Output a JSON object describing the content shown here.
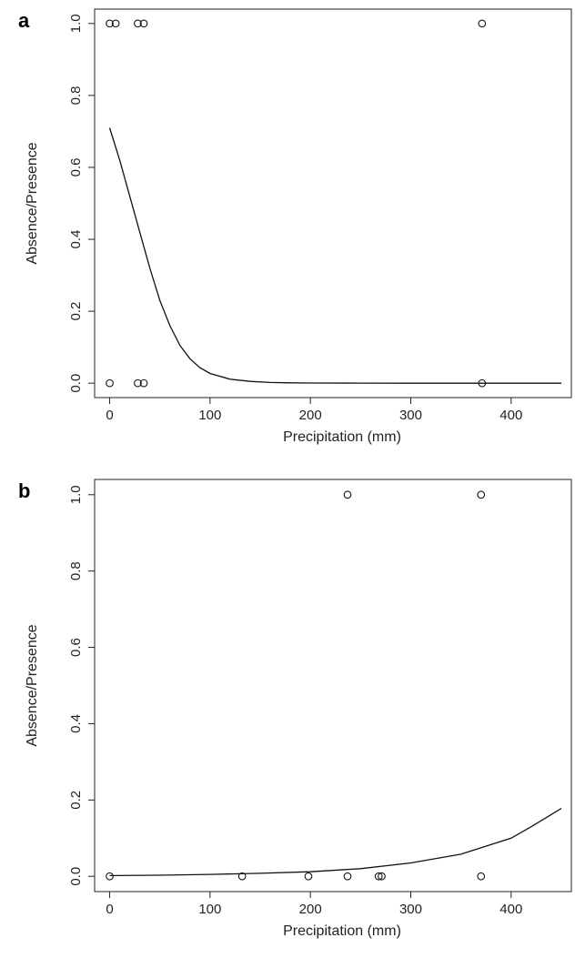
{
  "chart_data": [
    {
      "panel_label": "a",
      "type": "scatter",
      "xlabel": "Precipitation (mm)",
      "ylabel": "Absence/Presence",
      "xlim": [
        -15,
        460
      ],
      "ylim": [
        -0.04,
        1.04
      ],
      "x_ticks": [
        0,
        100,
        200,
        300,
        400
      ],
      "y_ticks": [
        0.0,
        0.2,
        0.4,
        0.6,
        0.8,
        1.0
      ],
      "y_tick_labels": [
        "0.0",
        "0.2",
        "0.4",
        "0.6",
        "0.8",
        "1.0"
      ],
      "grid": false,
      "points": [
        {
          "x": 0,
          "y": 1
        },
        {
          "x": 6,
          "y": 1
        },
        {
          "x": 28,
          "y": 1
        },
        {
          "x": 34,
          "y": 1
        },
        {
          "x": 371,
          "y": 1
        },
        {
          "x": 0,
          "y": 0
        },
        {
          "x": 28,
          "y": 0
        },
        {
          "x": 34,
          "y": 0
        },
        {
          "x": 371,
          "y": 0
        }
      ],
      "fitted_curve": {
        "x": [
          0,
          10,
          20,
          30,
          40,
          50,
          60,
          70,
          80,
          90,
          100,
          120,
          140,
          160,
          180,
          200,
          250,
          300,
          350,
          400,
          450
        ],
        "y": [
          0.71,
          0.62,
          0.52,
          0.42,
          0.32,
          0.23,
          0.16,
          0.105,
          0.068,
          0.043,
          0.027,
          0.011,
          0.005,
          0.002,
          0.001,
          0.0005,
          0.0001,
          0.0,
          0.0,
          0.0,
          0.0
        ]
      }
    },
    {
      "panel_label": "b",
      "type": "scatter",
      "xlabel": "Precipitation (mm)",
      "ylabel": "Absence/Presence",
      "xlim": [
        -15,
        460
      ],
      "ylim": [
        -0.04,
        1.04
      ],
      "x_ticks": [
        0,
        100,
        200,
        300,
        400
      ],
      "y_ticks": [
        0.0,
        0.2,
        0.4,
        0.6,
        0.8,
        1.0
      ],
      "y_tick_labels": [
        "0.0",
        "0.2",
        "0.4",
        "0.6",
        "0.8",
        "1.0"
      ],
      "grid": false,
      "points": [
        {
          "x": 237,
          "y": 1
        },
        {
          "x": 370,
          "y": 1
        },
        {
          "x": 0,
          "y": 0
        },
        {
          "x": 132,
          "y": 0
        },
        {
          "x": 198,
          "y": 0
        },
        {
          "x": 237,
          "y": 0
        },
        {
          "x": 268,
          "y": 0
        },
        {
          "x": 271,
          "y": 0
        },
        {
          "x": 370,
          "y": 0
        }
      ],
      "fitted_curve": {
        "x": [
          0,
          50,
          100,
          150,
          200,
          250,
          300,
          350,
          400,
          420,
          450
        ],
        "y": [
          0.002,
          0.003,
          0.005,
          0.008,
          0.012,
          0.02,
          0.035,
          0.058,
          0.1,
          0.13,
          0.178
        ]
      }
    }
  ]
}
